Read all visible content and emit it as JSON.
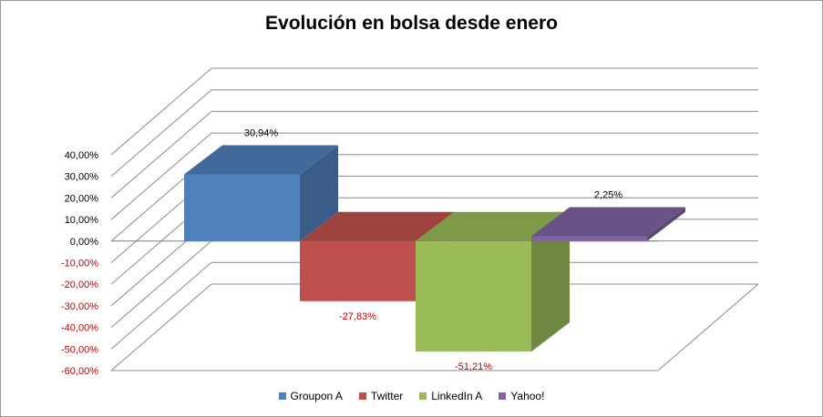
{
  "chart_data": {
    "type": "bar",
    "title": "Evolución en bolsa desde enero",
    "categories": [
      "Groupon A",
      "Twitter",
      "LinkedIn A",
      "Yahoo!"
    ],
    "values": [
      30.94,
      -27.83,
      -51.21,
      2.25
    ],
    "value_labels": [
      "30,94%",
      "-27,83%",
      "-51,21%",
      "2,25%"
    ],
    "colors": [
      "#4f81bd",
      "#c0504d",
      "#9bbb59",
      "#8064a2"
    ],
    "ylim": [
      -60,
      40
    ],
    "yticks": [
      40,
      30,
      20,
      10,
      0,
      -10,
      -20,
      -30,
      -40,
      -50,
      -60
    ],
    "ytick_labels": [
      "40,00%",
      "30,00%",
      "20,00%",
      "10,00%",
      "0,00%",
      "-10,00%",
      "-20,00%",
      "-30,00%",
      "-40,00%",
      "-50,00%",
      "-60,00%"
    ],
    "negative_label_color": "#c00000",
    "grid": true,
    "legend_position": "bottom",
    "xlabel": "",
    "ylabel": ""
  }
}
